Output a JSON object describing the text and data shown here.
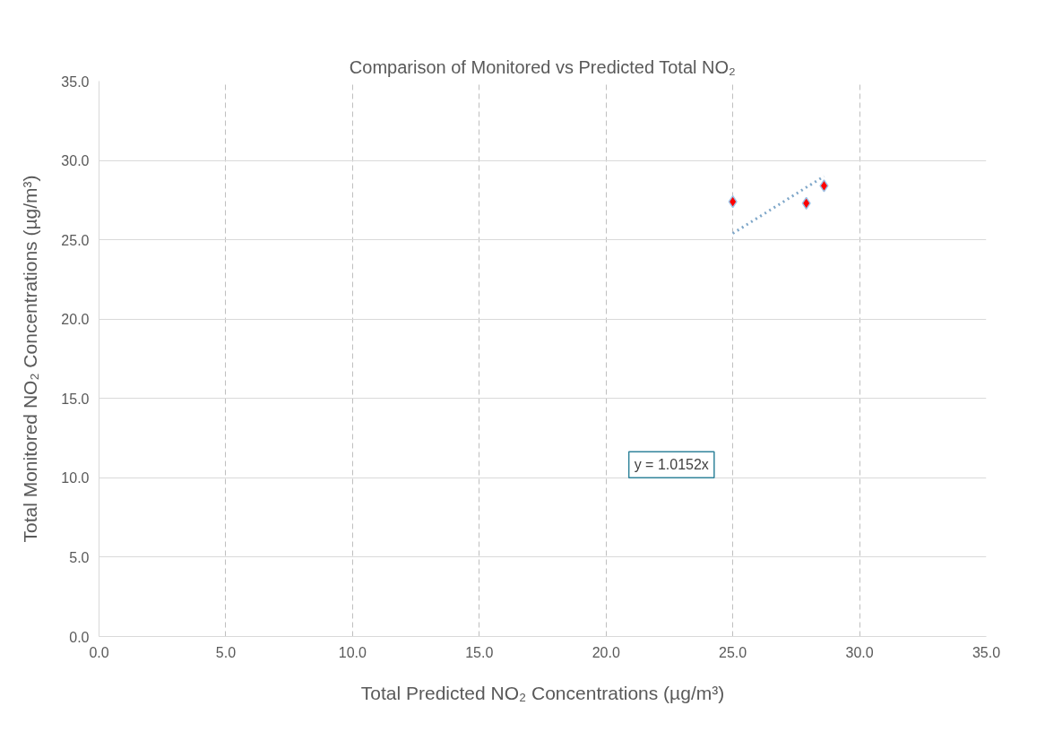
{
  "chart_data": {
    "type": "scatter",
    "title": "Comparison of Monitored vs Predicted Total NO₂",
    "xlabel": "Total Predicted NO₂ Concentrations (µg/m³)",
    "ylabel": "Total Monitored NO₂ Concentrations (µg/m³)",
    "series": [
      {
        "color": "#ff0000",
        "marker": "diamond",
        "x": [
          25.0,
          27.9,
          28.6
        ],
        "values": [
          27.4,
          27.3,
          28.4
        ]
      },
      {
        "type": "line",
        "color": "#7fa7c9",
        "line_style": "dotted",
        "marker": "none",
        "x": [
          25.0,
          28.6
        ],
        "values": [
          25.4,
          29.0
        ]
      }
    ],
    "annotations": [
      "y = 1.0152x"
    ],
    "xlim": [
      0,
      35
    ],
    "ylim": [
      0,
      35
    ],
    "xticks": [
      {
        "value": 0,
        "label": "0.0"
      },
      {
        "value": 5,
        "label": "5.0"
      },
      {
        "value": 10,
        "label": "10.0"
      },
      {
        "value": 15,
        "label": "15.0"
      },
      {
        "value": 20,
        "label": "20.0"
      },
      {
        "value": 25,
        "label": "25.0"
      },
      {
        "value": 30,
        "label": "30.0"
      },
      {
        "value": 35,
        "label": "35.0"
      }
    ],
    "yticks": [
      {
        "value": 0,
        "label": "0.0"
      },
      {
        "value": 5,
        "label": "5.0"
      },
      {
        "value": 10,
        "label": "10.0"
      },
      {
        "value": 15,
        "label": "15.0"
      },
      {
        "value": 20,
        "label": "20.0"
      },
      {
        "value": 25,
        "label": "25.0"
      },
      {
        "value": 30,
        "label": "30.0"
      },
      {
        "value": 35,
        "label": "35.0"
      }
    ],
    "grid": true
  }
}
